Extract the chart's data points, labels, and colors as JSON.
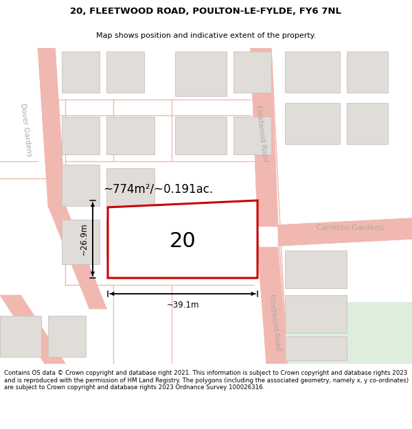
{
  "title": "20, FLEETWOOD ROAD, POULTON-LE-FYLDE, FY6 7NL",
  "subtitle": "Map shows position and indicative extent of the property.",
  "footer": "Contains OS data © Crown copyright and database right 2021. This information is subject to Crown copyright and database rights 2023 and is reproduced with the permission of HM Land Registry. The polygons (including the associated geometry, namely x, y co-ordinates) are subject to Crown copyright and database rights 2023 Ordnance Survey 100026316.",
  "map_bg": "#ffffff",
  "road_stroke": "#f0b8b0",
  "road_lw": 1.0,
  "building_fill": "#e0dcd8",
  "building_edge": "#c8c0bc",
  "green_fill": "#d8ead8",
  "plot_fill": "#ffffff",
  "plot_edge": "#cc0000",
  "plot_lw": 2.2,
  "plot_label": "20",
  "area_label": "~774m²/~0.191ac.",
  "width_label": "~39.1m",
  "height_label": "~26.9m",
  "road_label_fleetwood_top": "Fleetwood Road",
  "road_label_fleetwood_bot": "Fleetwood Road",
  "road_label_dover": "Dover Gardens",
  "road_label_carleton": "Carleton Gardens",
  "road_text_color": "#aaaaaa",
  "title_fontsize": 9.5,
  "subtitle_fontsize": 8.0,
  "footer_fontsize": 6.2,
  "label_fontsize": 13,
  "dim_fontsize": 8.5,
  "area_fontsize": 12
}
